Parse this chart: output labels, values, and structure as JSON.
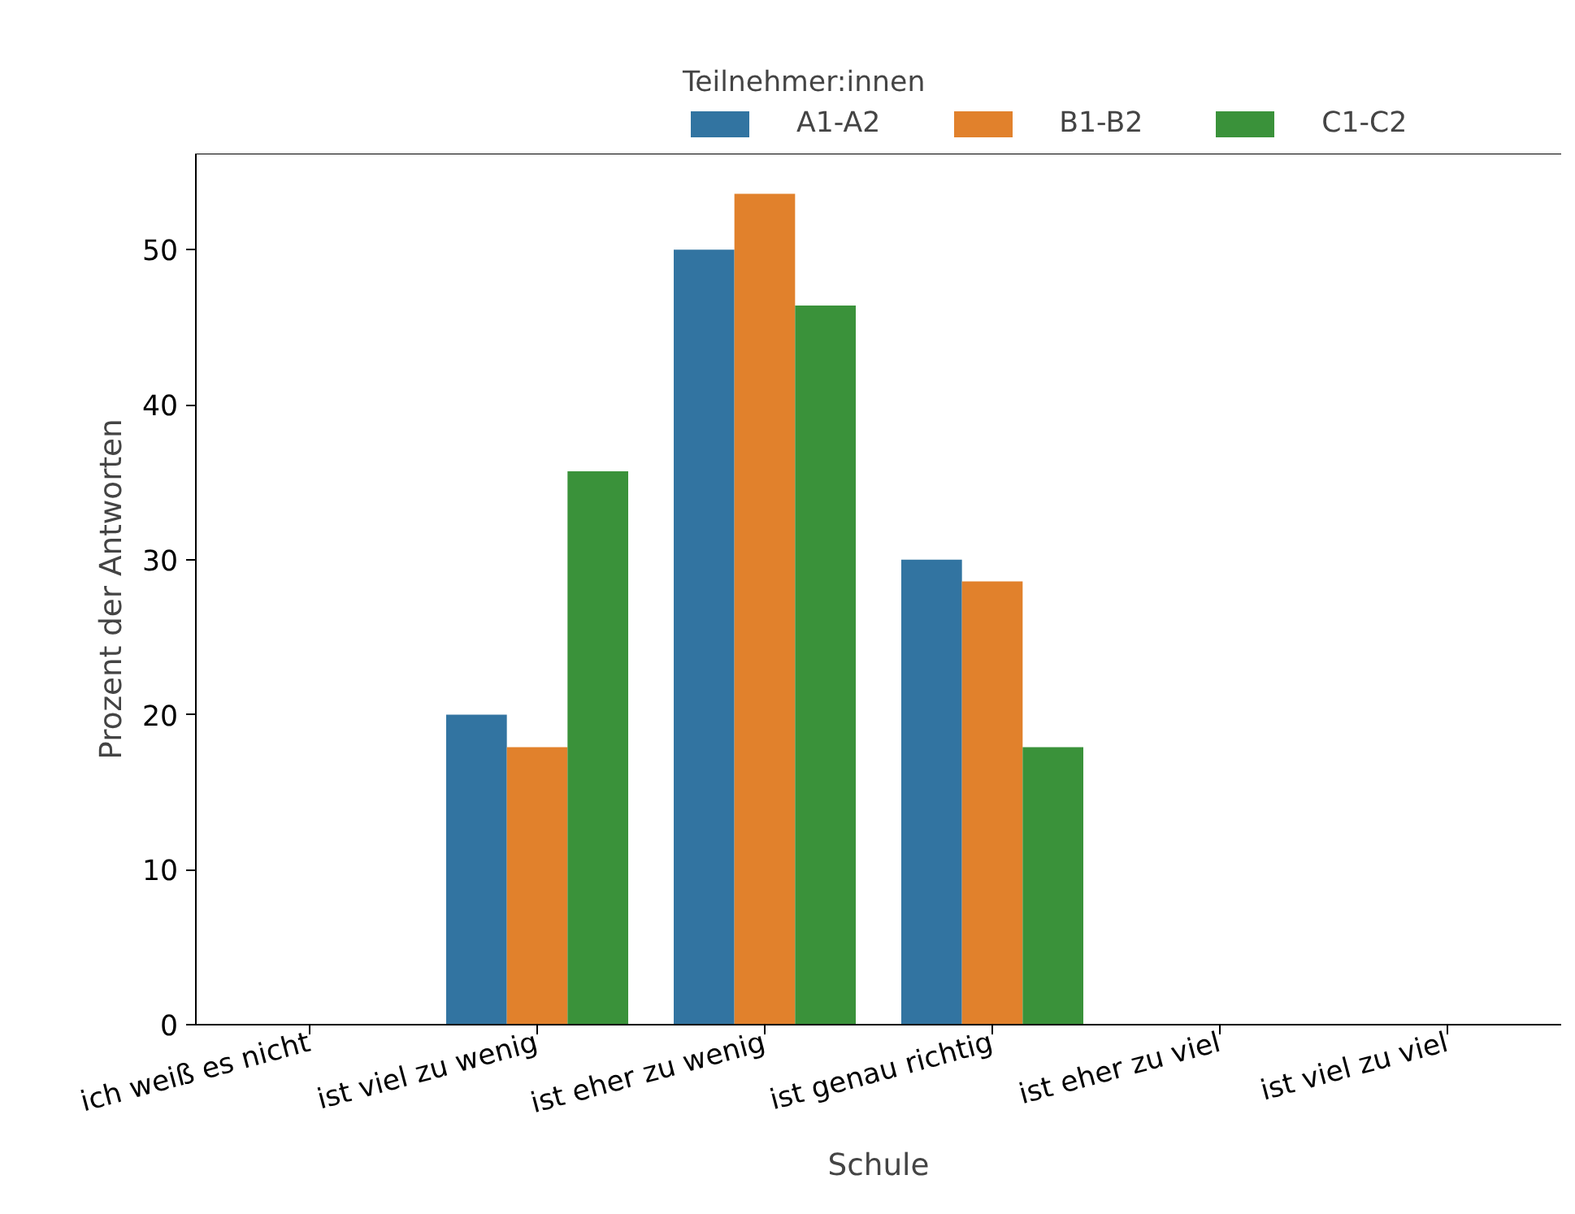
{
  "chart_data": {
    "type": "bar",
    "xlabel": "Schule",
    "ylabel": "Prozent der Antworten",
    "legend_title": "Teilnehmer:innen",
    "categories": [
      "ich weiß es nicht",
      "ist viel zu wenig",
      "ist eher zu wenig",
      "ist genau richtig",
      "ist eher zu viel",
      "ist viel zu viel"
    ],
    "series": [
      {
        "name": "A1-A2",
        "color": "#3274a1",
        "values": [
          0,
          20.0,
          50.0,
          30.0,
          0,
          0
        ]
      },
      {
        "name": "B1-B2",
        "color": "#e1812c",
        "values": [
          0,
          17.9,
          53.6,
          28.6,
          0,
          0
        ]
      },
      {
        "name": "C1-C2",
        "color": "#3a923a",
        "values": [
          0,
          35.7,
          46.4,
          17.9,
          0,
          0
        ]
      }
    ],
    "ylim": [
      0,
      56.2
    ],
    "yticks": [
      0,
      10,
      20,
      30,
      40,
      50
    ],
    "grid": false,
    "legend": "top"
  }
}
